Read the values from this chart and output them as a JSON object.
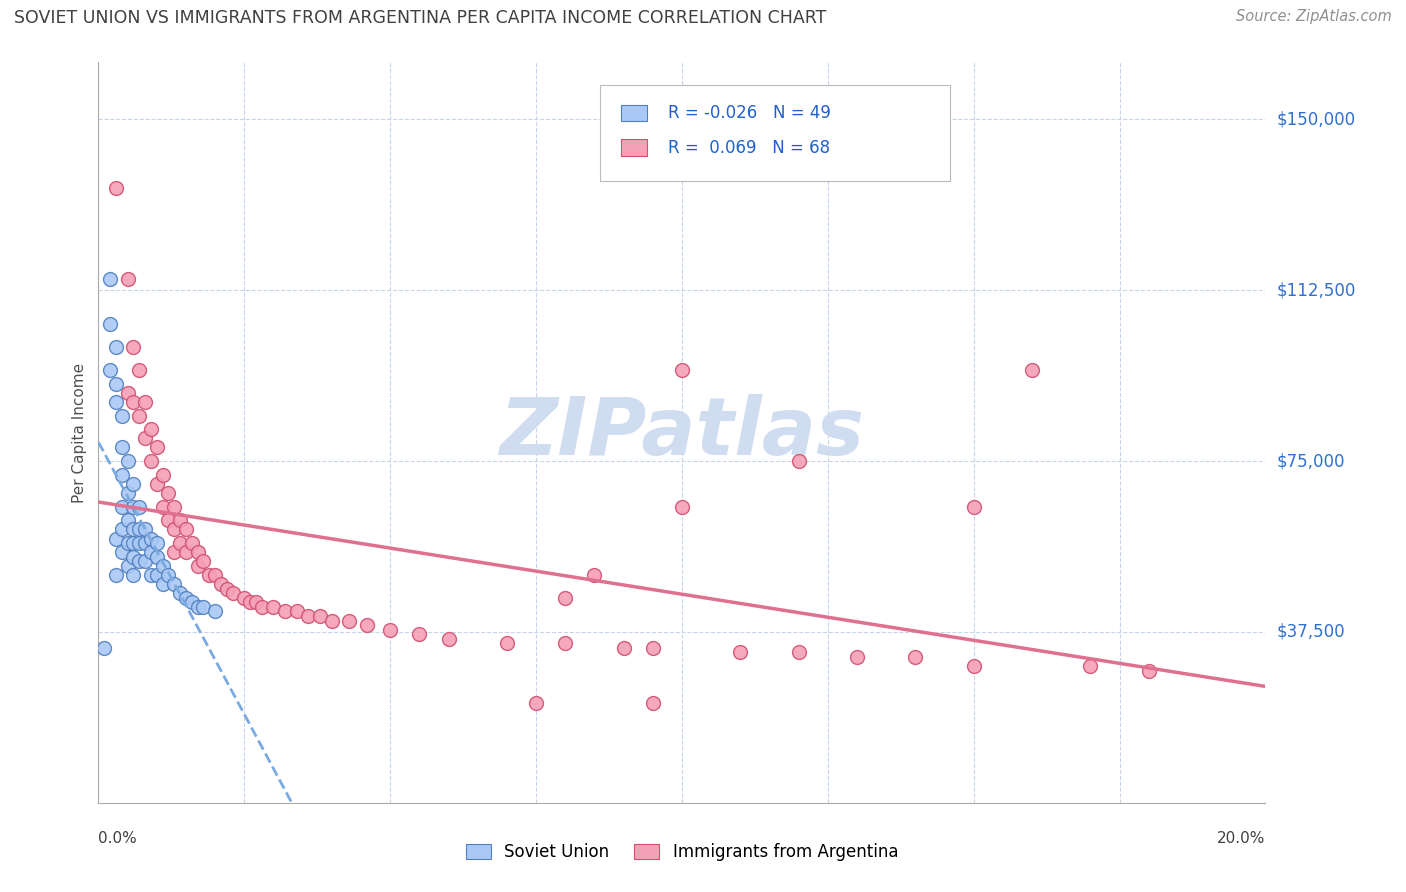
{
  "title": "SOVIET UNION VS IMMIGRANTS FROM ARGENTINA PER CAPITA INCOME CORRELATION CHART",
  "source": "Source: ZipAtlas.com",
  "ylabel": "Per Capita Income",
  "ytick_labels": [
    "$37,500",
    "$75,000",
    "$112,500",
    "$150,000"
  ],
  "ytick_values": [
    37500,
    75000,
    112500,
    150000
  ],
  "y_min": 0,
  "y_max": 162500,
  "x_min": 0.0,
  "x_max": 0.2,
  "color_soviet": "#aac8f5",
  "color_argentina": "#f5a0b5",
  "color_soviet_edge": "#5080c0",
  "color_argentina_edge": "#d05070",
  "color_soviet_line": "#7aaae0",
  "color_argentina_line": "#e07090",
  "color_title": "#404040",
  "color_source": "#909090",
  "color_ytick": "#3070d0",
  "color_grid": "#c8d4e8",
  "watermark_color": "#d0ddf0",
  "soviet_x": [
    0.001,
    0.002,
    0.002,
    0.002,
    0.003,
    0.003,
    0.003,
    0.003,
    0.003,
    0.004,
    0.004,
    0.004,
    0.004,
    0.004,
    0.004,
    0.005,
    0.005,
    0.005,
    0.005,
    0.005,
    0.006,
    0.006,
    0.006,
    0.006,
    0.006,
    0.006,
    0.007,
    0.007,
    0.007,
    0.007,
    0.008,
    0.008,
    0.008,
    0.009,
    0.009,
    0.009,
    0.01,
    0.01,
    0.01,
    0.011,
    0.011,
    0.012,
    0.013,
    0.014,
    0.015,
    0.016,
    0.017,
    0.018,
    0.02
  ],
  "soviet_y": [
    34000,
    115000,
    105000,
    95000,
    100000,
    92000,
    88000,
    58000,
    50000,
    85000,
    78000,
    72000,
    65000,
    60000,
    55000,
    75000,
    68000,
    62000,
    57000,
    52000,
    70000,
    65000,
    60000,
    57000,
    54000,
    50000,
    65000,
    60000,
    57000,
    53000,
    60000,
    57000,
    53000,
    58000,
    55000,
    50000,
    57000,
    54000,
    50000,
    52000,
    48000,
    50000,
    48000,
    46000,
    45000,
    44000,
    43000,
    43000,
    42000
  ],
  "argentina_x": [
    0.003,
    0.005,
    0.005,
    0.006,
    0.006,
    0.007,
    0.007,
    0.008,
    0.008,
    0.009,
    0.009,
    0.01,
    0.01,
    0.011,
    0.011,
    0.012,
    0.012,
    0.013,
    0.013,
    0.013,
    0.014,
    0.014,
    0.015,
    0.015,
    0.016,
    0.017,
    0.017,
    0.018,
    0.019,
    0.02,
    0.021,
    0.022,
    0.023,
    0.025,
    0.026,
    0.027,
    0.028,
    0.03,
    0.032,
    0.034,
    0.036,
    0.038,
    0.04,
    0.043,
    0.046,
    0.05,
    0.055,
    0.06,
    0.07,
    0.08,
    0.085,
    0.09,
    0.095,
    0.1,
    0.11,
    0.12,
    0.13,
    0.14,
    0.15,
    0.16,
    0.17,
    0.18,
    0.075,
    0.095,
    0.1,
    0.12,
    0.15,
    0.08
  ],
  "argentina_y": [
    135000,
    115000,
    90000,
    100000,
    88000,
    95000,
    85000,
    88000,
    80000,
    82000,
    75000,
    78000,
    70000,
    72000,
    65000,
    68000,
    62000,
    65000,
    60000,
    55000,
    62000,
    57000,
    60000,
    55000,
    57000,
    55000,
    52000,
    53000,
    50000,
    50000,
    48000,
    47000,
    46000,
    45000,
    44000,
    44000,
    43000,
    43000,
    42000,
    42000,
    41000,
    41000,
    40000,
    40000,
    39000,
    38000,
    37000,
    36000,
    35000,
    35000,
    50000,
    34000,
    34000,
    95000,
    33000,
    33000,
    32000,
    32000,
    30000,
    95000,
    30000,
    29000,
    22000,
    22000,
    65000,
    75000,
    65000,
    45000
  ]
}
